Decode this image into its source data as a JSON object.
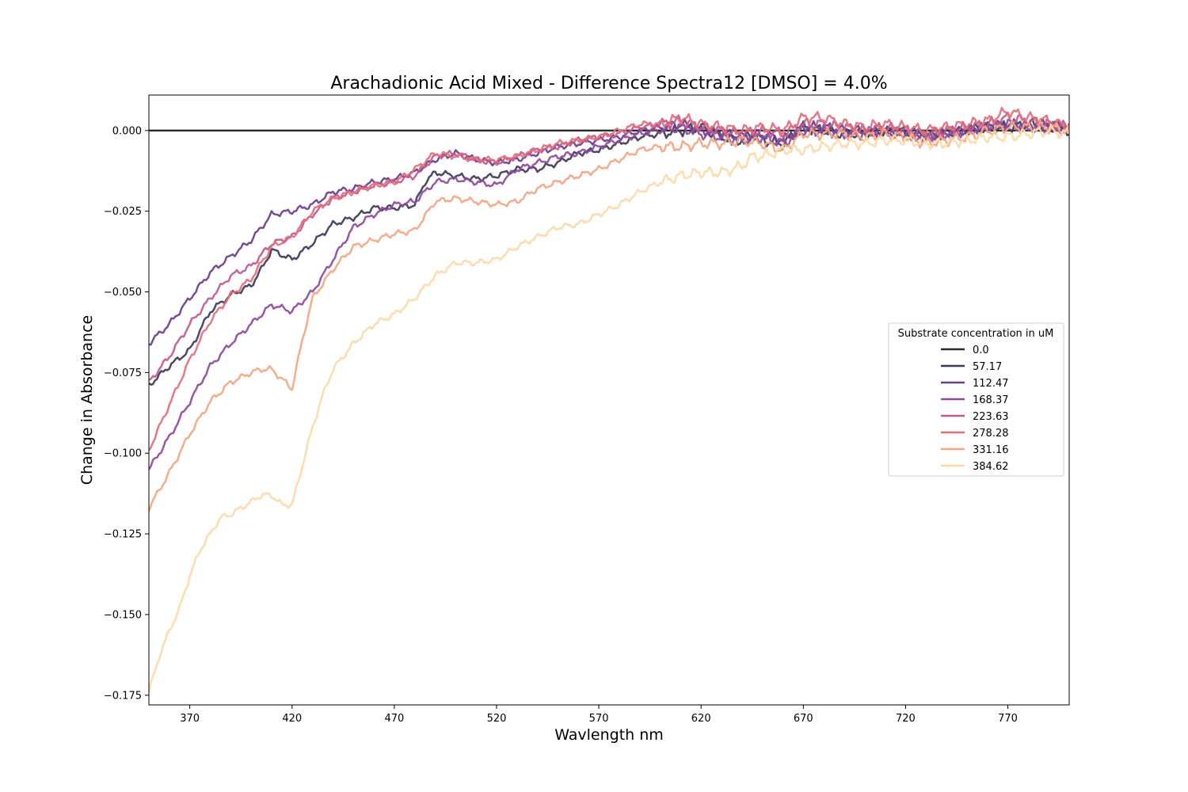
{
  "chart_data": {
    "type": "line",
    "title": "Arachadionic Acid Mixed - Difference Spectra12 [DMSO] = 4.0%",
    "xlabel": "Wavlength nm",
    "ylabel": "Change in Absorbance",
    "xlim": [
      350,
      800
    ],
    "ylim": [
      -0.178,
      0.011
    ],
    "xticks": [
      370,
      420,
      470,
      520,
      570,
      620,
      670,
      720,
      770
    ],
    "xtick_labels": [
      "370",
      "420",
      "470",
      "520",
      "570",
      "620",
      "670",
      "720",
      "770"
    ],
    "yticks": [
      0.0,
      -0.025,
      -0.05,
      -0.075,
      -0.1,
      -0.125,
      -0.15,
      -0.175
    ],
    "ytick_labels": [
      "0.000",
      "−0.025",
      "−0.050",
      "−0.075",
      "−0.100",
      "−0.125",
      "−0.150",
      "−0.175"
    ],
    "grid": false,
    "legend": {
      "title": "Substrate concentration in uM",
      "position": "center-right"
    },
    "series": [
      {
        "name": "0.0",
        "color": "#2b2b2b",
        "x": [
          350,
          800
        ],
        "y": [
          0.0,
          0.0
        ]
      },
      {
        "name": "57.17",
        "color": "#3d3a59",
        "x": [
          350,
          360,
          370,
          380,
          390,
          400,
          405,
          410,
          420,
          430,
          440,
          450,
          460,
          470,
          480,
          485,
          490,
          500,
          510,
          520,
          530,
          540,
          550,
          560,
          570,
          580,
          590,
          600,
          610,
          620,
          630,
          640,
          645,
          650,
          660,
          670,
          680,
          690,
          700,
          710,
          720,
          730,
          740,
          750,
          760,
          770,
          780,
          790,
          800
        ],
        "y": [
          -0.079,
          -0.073,
          -0.068,
          -0.056,
          -0.051,
          -0.048,
          -0.043,
          -0.037,
          -0.04,
          -0.035,
          -0.029,
          -0.027,
          -0.024,
          -0.024,
          -0.023,
          -0.016,
          -0.013,
          -0.014,
          -0.015,
          -0.014,
          -0.012,
          -0.012,
          -0.01,
          -0.007,
          -0.006,
          -0.004,
          -0.002,
          -0.001,
          0.0,
          0.001,
          -0.002,
          -0.003,
          -0.001,
          -0.003,
          -0.004,
          0.001,
          0.0,
          -0.001,
          -0.001,
          0.0,
          -0.001,
          -0.002,
          -0.001,
          0.0,
          0.001,
          0.001,
          0.002,
          0.001,
          0.0
        ]
      },
      {
        "name": "112.47",
        "color": "#6d3e8c",
        "x": [
          350,
          360,
          370,
          380,
          390,
          400,
          410,
          420,
          430,
          440,
          450,
          460,
          470,
          480,
          490,
          500,
          510,
          520,
          530,
          540,
          550,
          560,
          570,
          580,
          590,
          600,
          610,
          620,
          630,
          640,
          650,
          660,
          670,
          680,
          690,
          700,
          710,
          720,
          730,
          740,
          750,
          760,
          770,
          780,
          790,
          800
        ],
        "y": [
          -0.066,
          -0.06,
          -0.052,
          -0.044,
          -0.039,
          -0.034,
          -0.026,
          -0.025,
          -0.023,
          -0.019,
          -0.018,
          -0.016,
          -0.015,
          -0.013,
          -0.009,
          -0.007,
          -0.009,
          -0.01,
          -0.009,
          -0.007,
          -0.005,
          -0.004,
          -0.003,
          -0.002,
          0.0,
          0.001,
          0.002,
          0.0,
          -0.001,
          -0.002,
          -0.001,
          -0.003,
          0.001,
          0.001,
          0.0,
          0.0,
          -0.001,
          0.0,
          -0.002,
          -0.001,
          0.0,
          0.001,
          0.002,
          0.001,
          0.002,
          0.001
        ]
      },
      {
        "name": "168.37",
        "color": "#8e4a9c",
        "x": [
          350,
          360,
          370,
          380,
          390,
          400,
          410,
          420,
          430,
          440,
          450,
          460,
          470,
          480,
          490,
          500,
          510,
          520,
          530,
          540,
          550,
          560,
          570,
          580,
          590,
          600,
          610,
          620,
          630,
          640,
          650,
          660,
          670,
          680,
          690,
          700,
          710,
          720,
          730,
          740,
          750,
          760,
          770,
          780,
          790,
          800
        ],
        "y": [
          -0.105,
          -0.095,
          -0.084,
          -0.073,
          -0.066,
          -0.06,
          -0.054,
          -0.056,
          -0.05,
          -0.04,
          -0.03,
          -0.026,
          -0.023,
          -0.022,
          -0.016,
          -0.015,
          -0.016,
          -0.017,
          -0.012,
          -0.01,
          -0.008,
          -0.007,
          -0.005,
          -0.003,
          -0.001,
          0.0,
          0.001,
          -0.001,
          -0.002,
          -0.003,
          -0.002,
          -0.004,
          0.0,
          0.0,
          -0.001,
          -0.001,
          0.0,
          -0.001,
          -0.002,
          -0.001,
          0.0,
          0.001,
          0.002,
          0.001,
          0.001,
          0.0
        ]
      },
      {
        "name": "223.63",
        "color": "#c25a8f",
        "x": [
          350,
          360,
          370,
          380,
          390,
          400,
          410,
          420,
          430,
          440,
          450,
          460,
          470,
          480,
          490,
          500,
          510,
          520,
          530,
          540,
          550,
          560,
          570,
          580,
          590,
          600,
          610,
          620,
          630,
          640,
          650,
          660,
          670,
          680,
          690,
          700,
          710,
          720,
          730,
          740,
          750,
          760,
          770,
          780,
          790,
          800
        ],
        "y": [
          -0.078,
          -0.07,
          -0.06,
          -0.052,
          -0.045,
          -0.042,
          -0.035,
          -0.033,
          -0.026,
          -0.021,
          -0.019,
          -0.017,
          -0.016,
          -0.014,
          -0.008,
          -0.007,
          -0.009,
          -0.01,
          -0.008,
          -0.006,
          -0.005,
          -0.003,
          -0.002,
          -0.001,
          0.001,
          0.002,
          0.003,
          0.001,
          0.0,
          -0.001,
          0.0,
          -0.001,
          0.002,
          0.002,
          0.001,
          0.0,
          0.001,
          0.0,
          -0.001,
          0.0,
          0.001,
          0.002,
          0.004,
          0.003,
          0.002,
          0.001
        ]
      },
      {
        "name": "278.28",
        "color": "#e36f7a",
        "x": [
          350,
          360,
          370,
          380,
          390,
          400,
          410,
          420,
          430,
          440,
          450,
          460,
          470,
          480,
          490,
          500,
          510,
          520,
          530,
          540,
          550,
          560,
          570,
          580,
          590,
          600,
          610,
          620,
          630,
          640,
          650,
          660,
          670,
          680,
          690,
          700,
          710,
          720,
          730,
          740,
          750,
          760,
          770,
          780,
          790,
          800
        ],
        "y": [
          -0.099,
          -0.085,
          -0.071,
          -0.059,
          -0.051,
          -0.046,
          -0.036,
          -0.033,
          -0.025,
          -0.021,
          -0.019,
          -0.017,
          -0.016,
          -0.012,
          -0.007,
          -0.008,
          -0.009,
          -0.009,
          -0.008,
          -0.006,
          -0.004,
          -0.003,
          -0.002,
          0.0,
          0.002,
          0.002,
          0.004,
          0.002,
          0.001,
          0.0,
          0.001,
          0.0,
          0.004,
          0.004,
          0.002,
          0.001,
          0.002,
          0.001,
          0.0,
          0.001,
          0.002,
          0.003,
          0.006,
          0.004,
          0.003,
          0.001
        ]
      },
      {
        "name": "331.16",
        "color": "#f4a582",
        "x": [
          350,
          360,
          370,
          380,
          390,
          400,
          405,
          410,
          420,
          425,
          430,
          440,
          450,
          460,
          470,
          480,
          490,
          500,
          510,
          520,
          530,
          540,
          550,
          560,
          570,
          580,
          590,
          600,
          610,
          620,
          630,
          640,
          650,
          660,
          670,
          680,
          690,
          700,
          710,
          720,
          730,
          740,
          750,
          760,
          770,
          780,
          790,
          800
        ],
        "y": [
          -0.117,
          -0.106,
          -0.094,
          -0.084,
          -0.078,
          -0.075,
          -0.074,
          -0.074,
          -0.08,
          -0.065,
          -0.052,
          -0.043,
          -0.036,
          -0.034,
          -0.032,
          -0.031,
          -0.022,
          -0.021,
          -0.022,
          -0.023,
          -0.022,
          -0.018,
          -0.016,
          -0.014,
          -0.012,
          -0.009,
          -0.006,
          -0.005,
          -0.005,
          -0.004,
          -0.004,
          -0.003,
          -0.004,
          -0.006,
          -0.001,
          -0.001,
          -0.001,
          -0.002,
          -0.001,
          -0.002,
          -0.004,
          -0.003,
          -0.002,
          0.0,
          0.001,
          0.001,
          0.001,
          0.0
        ]
      },
      {
        "name": "384.62",
        "color": "#fdd9a8",
        "x": [
          350,
          355,
          360,
          365,
          370,
          375,
          380,
          385,
          390,
          395,
          400,
          405,
          410,
          415,
          420,
          425,
          430,
          435,
          440,
          450,
          460,
          470,
          480,
          490,
          500,
          510,
          520,
          530,
          540,
          550,
          560,
          570,
          580,
          590,
          600,
          610,
          620,
          630,
          640,
          645,
          650,
          660,
          670,
          680,
          690,
          700,
          710,
          720,
          730,
          740,
          750,
          760,
          770,
          780,
          790,
          800
        ],
        "y": [
          -0.174,
          -0.163,
          -0.155,
          -0.148,
          -0.138,
          -0.13,
          -0.125,
          -0.12,
          -0.119,
          -0.117,
          -0.115,
          -0.113,
          -0.113,
          -0.116,
          -0.116,
          -0.104,
          -0.092,
          -0.082,
          -0.074,
          -0.066,
          -0.06,
          -0.057,
          -0.052,
          -0.045,
          -0.041,
          -0.041,
          -0.04,
          -0.036,
          -0.033,
          -0.03,
          -0.029,
          -0.026,
          -0.023,
          -0.019,
          -0.016,
          -0.014,
          -0.013,
          -0.013,
          -0.011,
          -0.008,
          -0.008,
          -0.006,
          -0.006,
          -0.005,
          -0.004,
          -0.004,
          -0.003,
          -0.003,
          -0.004,
          -0.004,
          -0.003,
          -0.002,
          -0.002,
          -0.001,
          0.0,
          -0.001
        ]
      }
    ]
  }
}
